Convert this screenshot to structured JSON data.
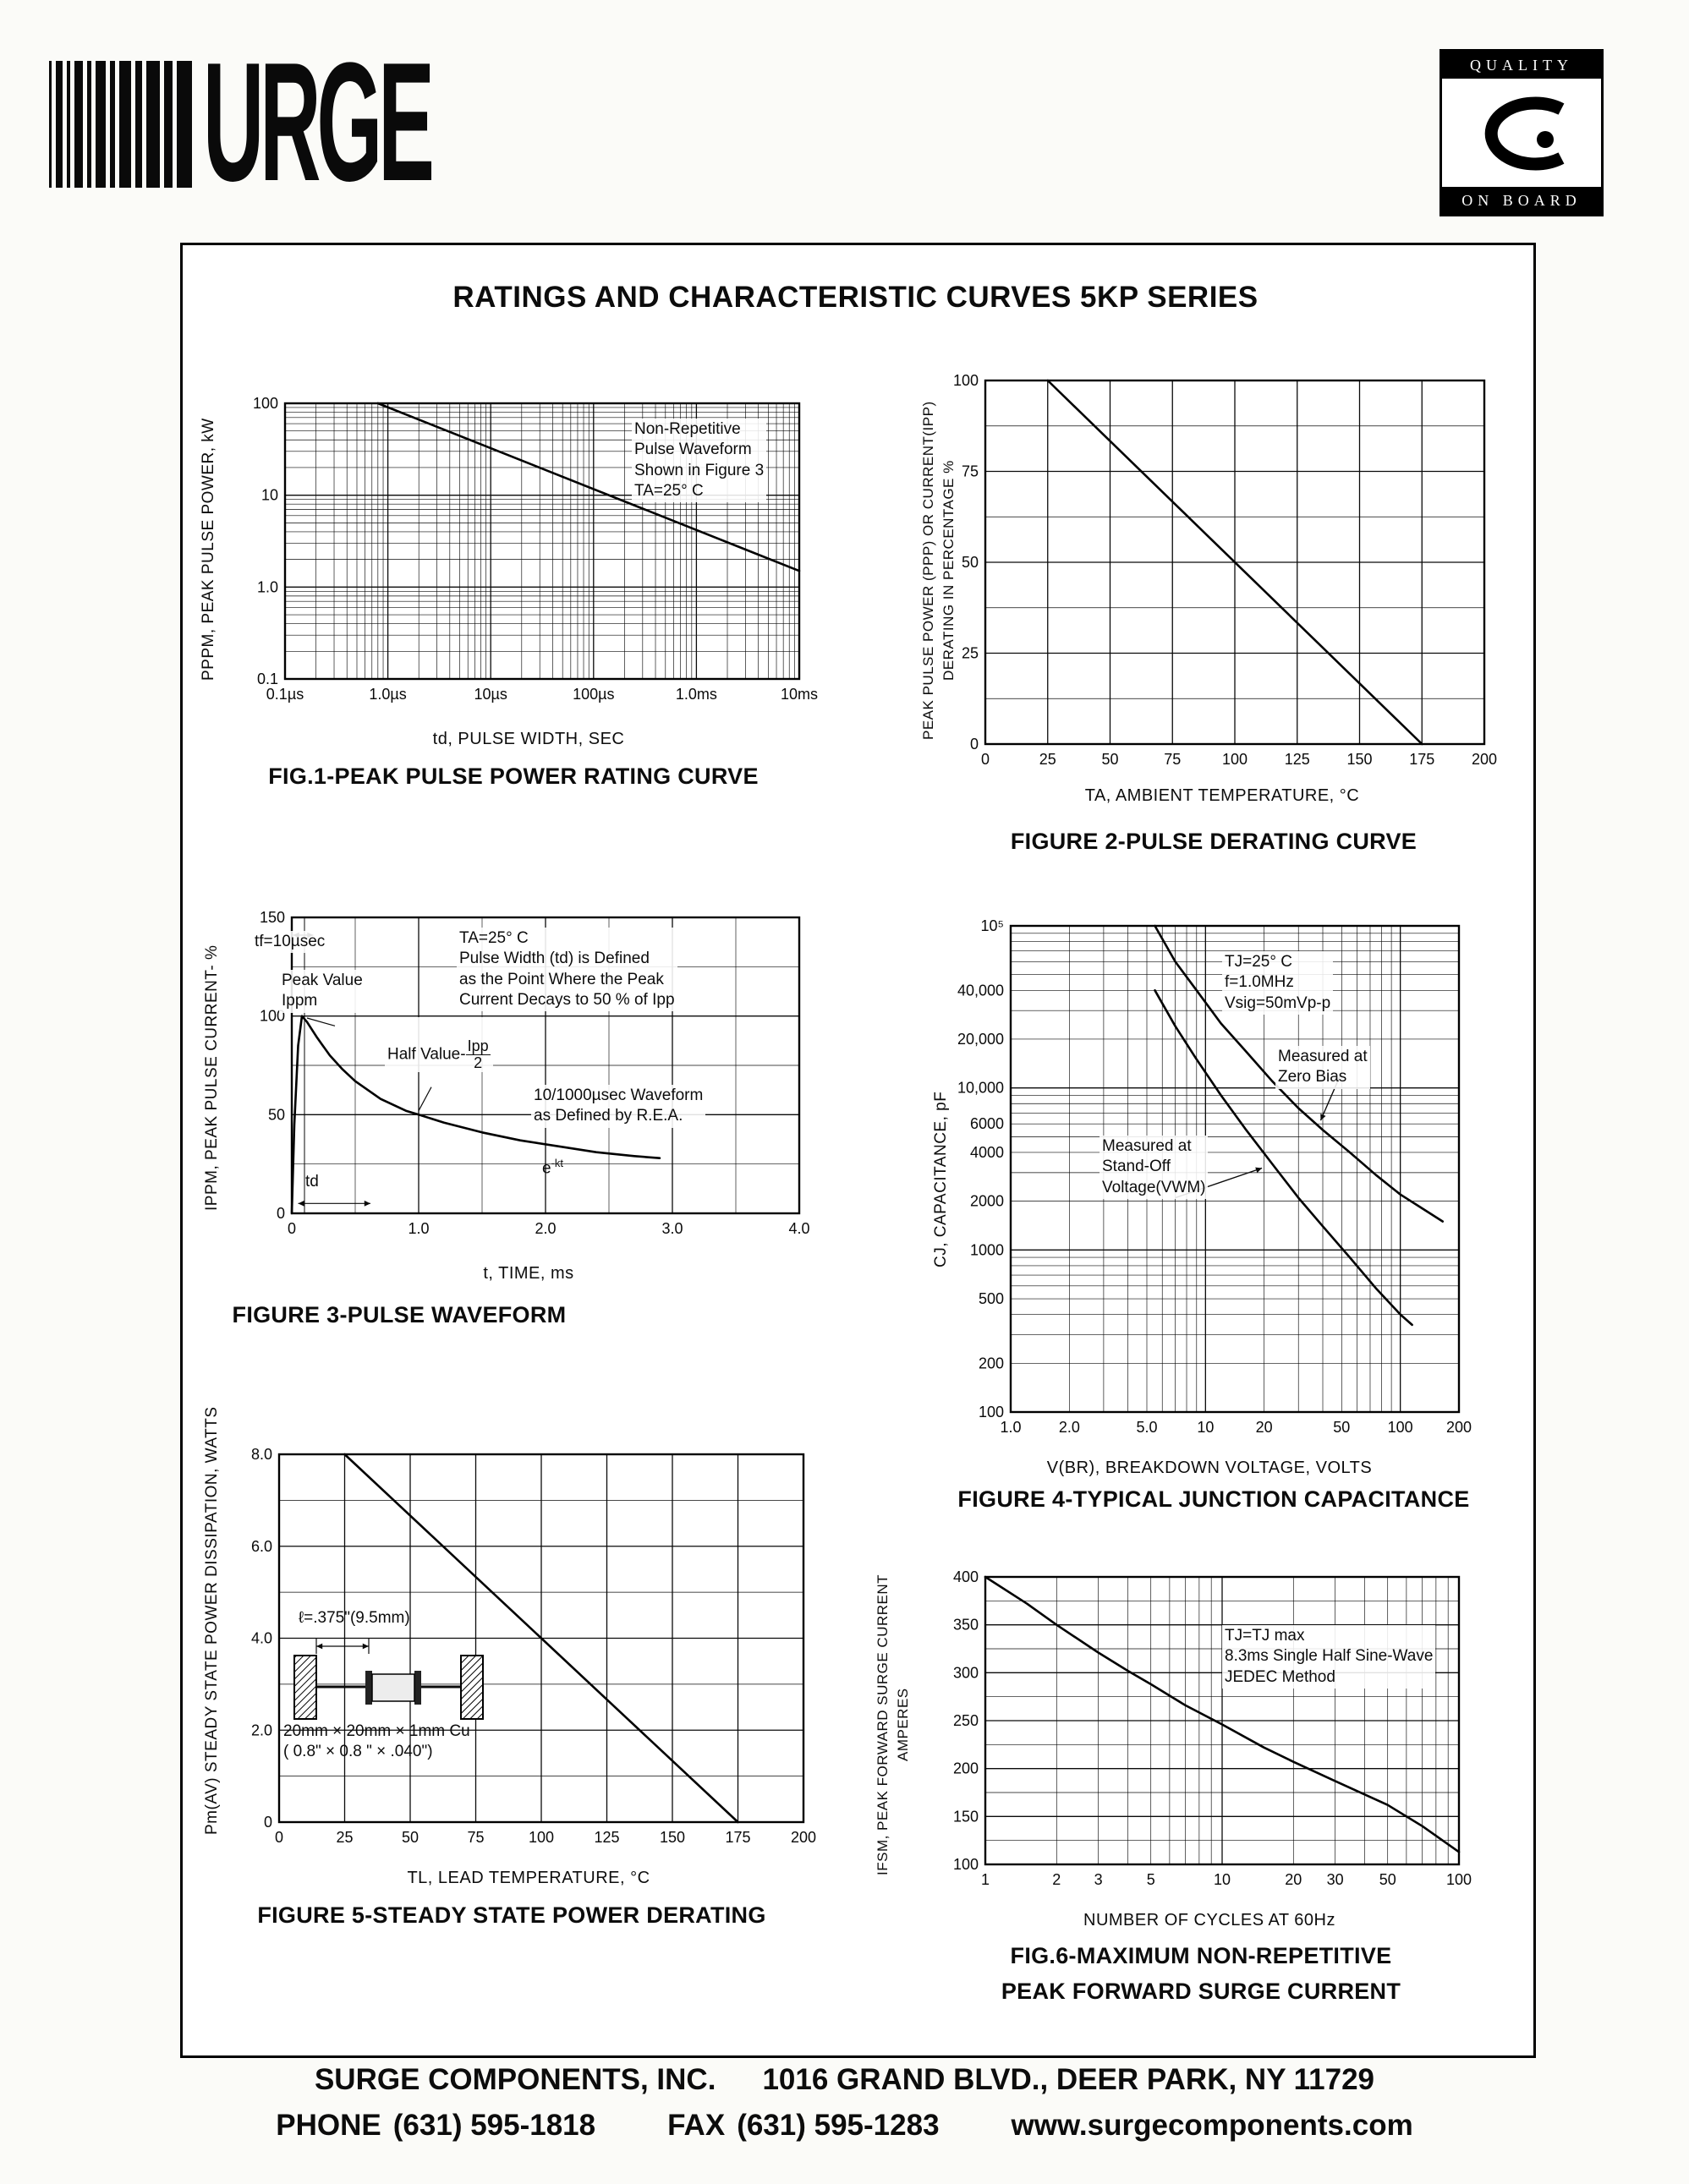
{
  "page": {
    "title": "RATINGS AND CHARACTERISTIC CURVES 5KP SERIES"
  },
  "logos": {
    "surge_text": "URGE",
    "quality_top": "QUALITY",
    "quality_bottom": "ON BOARD"
  },
  "footer": {
    "company": "SURGE COMPONENTS, INC.",
    "address": "1016 GRAND BLVD., DEER PARK, NY  11729",
    "phone_label": "PHONE",
    "phone": "(631) 595-1818",
    "fax_label": "FAX",
    "fax": "(631) 595-1283",
    "website": "www.surgecomponents.com"
  },
  "chart_data": [
    {
      "id": "fig1",
      "type": "line",
      "title": "FIG.1-PEAK PULSE POWER RATING CURVE",
      "xlabel": "td, PULSE WIDTH, SEC",
      "ylabel": "PPPM, PEAK PULSE POWER, kW",
      "xscale": "log",
      "yscale": "log",
      "xlim": [
        1e-07,
        0.01
      ],
      "ylim": [
        0.1,
        100
      ],
      "xticks": [
        1e-07,
        1e-06,
        1e-05,
        0.0001,
        0.001,
        0.01
      ],
      "xtick_labels": [
        "0.1µs",
        "1.0µs",
        "10µs",
        "100µs",
        "1.0ms",
        "10ms"
      ],
      "yticks": [
        0.1,
        1,
        10,
        100
      ],
      "ytick_labels": [
        "0.1",
        "1.0",
        "10",
        "100"
      ],
      "series": [
        {
          "name": "peak-pulse-power",
          "points": [
            [
              8e-07,
              100
            ],
            [
              0.01,
              1.5
            ]
          ]
        }
      ],
      "annotations": {
        "conditions": [
          "Non-Repetitive",
          "Pulse Waveform",
          "Shown in Figure 3",
          "TA=25° C"
        ]
      }
    },
    {
      "id": "fig2",
      "type": "line",
      "title": "FIGURE 2-PULSE DERATING CURVE",
      "xlabel": "TA, AMBIENT  TEMPERATURE, °C",
      "ylabel_lines": [
        "PEAK PULSE POWER (PPP) OR CURRENT(IPP)",
        "DERATING IN PERCENTAGE %"
      ],
      "xlim": [
        0,
        200
      ],
      "ylim": [
        0,
        100
      ],
      "xticks": [
        0,
        25,
        50,
        75,
        100,
        125,
        150,
        175,
        200
      ],
      "xtick_labels": [
        "0",
        "25",
        "50",
        "75",
        "100",
        "125",
        "150",
        "175",
        "200"
      ],
      "yticks": [
        0,
        25,
        50,
        75,
        100
      ],
      "ytick_labels": [
        "0",
        "25",
        "50",
        "75",
        "100"
      ],
      "series": [
        {
          "name": "pulse-derating",
          "points": [
            [
              25,
              100
            ],
            [
              175,
              0
            ]
          ]
        }
      ]
    },
    {
      "id": "fig3",
      "type": "line",
      "title": "FIGURE 3-PULSE WAVEFORM",
      "xlabel": "t, TIME, ms",
      "ylabel": "IPPM, PEAK PULSE CURRENT- %",
      "xlim": [
        0,
        4
      ],
      "ylim": [
        0,
        150
      ],
      "xticks": [
        0,
        1,
        2,
        3,
        4
      ],
      "xtick_labels": [
        "0",
        "1.0",
        "2.0",
        "3.0",
        "4.0"
      ],
      "yticks": [
        0,
        50,
        100,
        150
      ],
      "ytick_labels": [
        "0",
        "50",
        "100",
        "150"
      ],
      "series": [
        {
          "name": "pulse-waveform",
          "points": [
            [
              0,
              0
            ],
            [
              0.02,
              45
            ],
            [
              0.05,
              85
            ],
            [
              0.08,
              100
            ],
            [
              0.12,
              97
            ],
            [
              0.2,
              89
            ],
            [
              0.3,
              80
            ],
            [
              0.4,
              73
            ],
            [
              0.5,
              67
            ],
            [
              0.7,
              58
            ],
            [
              0.9,
              52
            ],
            [
              1,
              50
            ],
            [
              1.2,
              46
            ],
            [
              1.5,
              41
            ],
            [
              1.8,
              37
            ],
            [
              2.1,
              34
            ],
            [
              2.4,
              31
            ],
            [
              2.7,
              29
            ],
            [
              2.9,
              28
            ]
          ]
        }
      ],
      "annotations": {
        "rise_time": "tf=10µsec",
        "peak": [
          "Peak Value",
          "Ippm"
        ],
        "conditions": [
          "TA=25° C",
          "Pulse Width (td) is Defined",
          "as the Point Where the Peak",
          "Current Decays to 50 % of Ipp"
        ],
        "half_prefix": "Half Value-",
        "half_num": "Ipp",
        "half_den": "2",
        "rea": [
          "10/1000µsec Waveform",
          "as Defined by R.E.A."
        ],
        "ekt_base": "e",
        "ekt_exp": "-kt",
        "td": "td"
      }
    },
    {
      "id": "fig4",
      "type": "line",
      "title": "FIGURE 4-TYPICAL JUNCTION CAPACITANCE",
      "xlabel": "V(BR), BREAKDOWN  VOLTAGE, VOLTS",
      "ylabel": "CJ, CAPACITANCE, pF",
      "xscale": "log",
      "yscale": "log",
      "xlim": [
        1,
        200
      ],
      "ylim": [
        100,
        100000
      ],
      "xticks": [
        1,
        2,
        5,
        10,
        20,
        50,
        100,
        200
      ],
      "xtick_labels": [
        "1.0",
        "2.0",
        "5.0",
        "10",
        "20",
        "50",
        "100",
        "200"
      ],
      "yticks": [
        100,
        200,
        500,
        1000,
        2000,
        4000,
        6000,
        10000,
        20000,
        40000,
        100000
      ],
      "ytick_labels": [
        "100",
        "200",
        "500",
        "1000",
        "2000",
        "4000",
        "6000",
        "10,000",
        "20,000",
        "40,000",
        "10⁵"
      ],
      "series": [
        {
          "name": "measured-at-zero-bias",
          "points": [
            [
              5.5,
              100000
            ],
            [
              7,
              60000
            ],
            [
              9,
              40000
            ],
            [
              12,
              25000
            ],
            [
              16,
              17000
            ],
            [
              22,
              11000
            ],
            [
              30,
              7500
            ],
            [
              40,
              5500
            ],
            [
              55,
              4000
            ],
            [
              75,
              2900
            ],
            [
              100,
              2200
            ],
            [
              130,
              1800
            ],
            [
              165,
              1500
            ]
          ]
        },
        {
          "name": "measured-at-standoff-voltage",
          "points": [
            [
              5.5,
              40000
            ],
            [
              7,
              24000
            ],
            [
              9,
              15000
            ],
            [
              12,
              9000
            ],
            [
              16,
              5600
            ],
            [
              22,
              3400
            ],
            [
              30,
              2100
            ],
            [
              40,
              1400
            ],
            [
              55,
              900
            ],
            [
              75,
              580
            ],
            [
              100,
              400
            ],
            [
              115,
              345
            ]
          ]
        }
      ],
      "annotations": {
        "conditions": [
          "TJ=25° C",
          "f=1.0MHz",
          "Vsig=50mVp-p"
        ],
        "zero_bias": [
          "Measured at",
          "Zero Bias"
        ],
        "standoff": [
          "Measured at",
          "Stand-Off",
          "Voltage(VWM)"
        ]
      }
    },
    {
      "id": "fig5",
      "type": "line",
      "title": "FIGURE 5-STEADY STATE POWER DERATING",
      "xlabel": "TL, LEAD  TEMPERATURE, °C",
      "ylabel": "Pm(AV) STEADY STATE POWER DISSIPATION, WATTS",
      "xlim": [
        0,
        200
      ],
      "ylim": [
        0,
        8
      ],
      "xticks": [
        0,
        25,
        50,
        75,
        100,
        125,
        150,
        175,
        200
      ],
      "xtick_labels": [
        "0",
        "25",
        "50",
        "75",
        "100",
        "125",
        "150",
        "175",
        "200"
      ],
      "yticks": [
        0,
        2,
        4,
        6,
        8
      ],
      "ytick_labels": [
        "0",
        "2.0",
        "4.0",
        "6.0",
        "8.0"
      ],
      "series": [
        {
          "name": "steady-state-power-derating",
          "points": [
            [
              25,
              8
            ],
            [
              175,
              0
            ]
          ]
        }
      ],
      "annotations": {
        "lead_length": "ℓ=.375\"(9.5mm)",
        "copper": [
          "20mm × 20mm × 1mm Cu",
          "( 0.8\" ×  0.8 \" × .040\")"
        ]
      }
    },
    {
      "id": "fig6",
      "type": "line",
      "title_lines": [
        "FIG.6-MAXIMUM NON-REPETITIVE",
        "PEAK FORWARD SURGE CURRENT"
      ],
      "xlabel": "NUMBER  OF  CYCLES  AT  60Hz",
      "ylabel_lines": [
        "IFSM, PEAK FORWARD SURGE CURRENT",
        "AMPERES"
      ],
      "xscale": "log",
      "xlim": [
        1,
        100
      ],
      "ylim": [
        100,
        400
      ],
      "xticks": [
        1,
        2,
        3,
        5,
        10,
        20,
        30,
        50,
        100
      ],
      "xtick_labels": [
        "1",
        "2",
        "3",
        "5",
        "10",
        "20",
        "30",
        "50",
        "100"
      ],
      "yticks": [
        100,
        150,
        200,
        250,
        300,
        350,
        400
      ],
      "ytick_labels": [
        "100",
        "150",
        "200",
        "250",
        "300",
        "350",
        "400"
      ],
      "series": [
        {
          "name": "peak-forward-surge-current",
          "points": [
            [
              1,
              400
            ],
            [
              1.5,
              372
            ],
            [
              2,
              350
            ],
            [
              3,
              321
            ],
            [
              4,
              302
            ],
            [
              5,
              288
            ],
            [
              7,
              266
            ],
            [
              10,
              246
            ],
            [
              15,
              222
            ],
            [
              20,
              207
            ],
            [
              30,
              187
            ],
            [
              50,
              162
            ],
            [
              70,
              140
            ],
            [
              100,
              113
            ]
          ]
        }
      ],
      "annotations": {
        "conditions": [
          "TJ=TJ max",
          "8.3ms Single Half Sine-Wave",
          "JEDEC Method"
        ]
      }
    }
  ]
}
